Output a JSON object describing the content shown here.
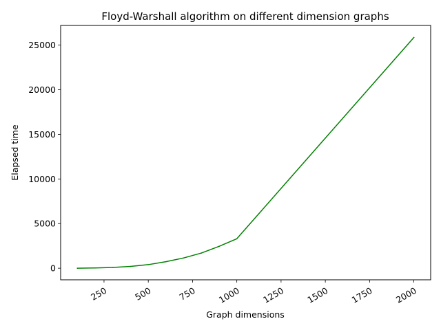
{
  "chart_data": {
    "type": "line",
    "title": "Floyd-Warshall algorithm on different dimension graphs",
    "xlabel": "Graph dimensions",
    "ylabel": "Elapsed time",
    "xlim": [
      5,
      2095
    ],
    "ylim": [
      -1300,
      27200
    ],
    "x_ticks": [
      250,
      500,
      750,
      1000,
      1250,
      1500,
      1750,
      2000
    ],
    "x_tick_labels": [
      "250",
      "500",
      "750",
      "1000",
      "1250",
      "1500",
      "1750",
      "2000"
    ],
    "y_ticks": [
      0,
      5000,
      10000,
      15000,
      20000,
      25000
    ],
    "y_tick_labels": [
      "0",
      "5000",
      "10000",
      "15000",
      "20000",
      "25000"
    ],
    "x_tick_rotation_deg": 30,
    "grid": false,
    "series": [
      {
        "color": "#008000",
        "x": [
          100,
          200,
          300,
          400,
          500,
          600,
          700,
          800,
          900,
          1000,
          2000
        ],
        "y": [
          0,
          30,
          90,
          200,
          400,
          730,
          1150,
          1700,
          2450,
          3300,
          25850
        ]
      }
    ]
  }
}
